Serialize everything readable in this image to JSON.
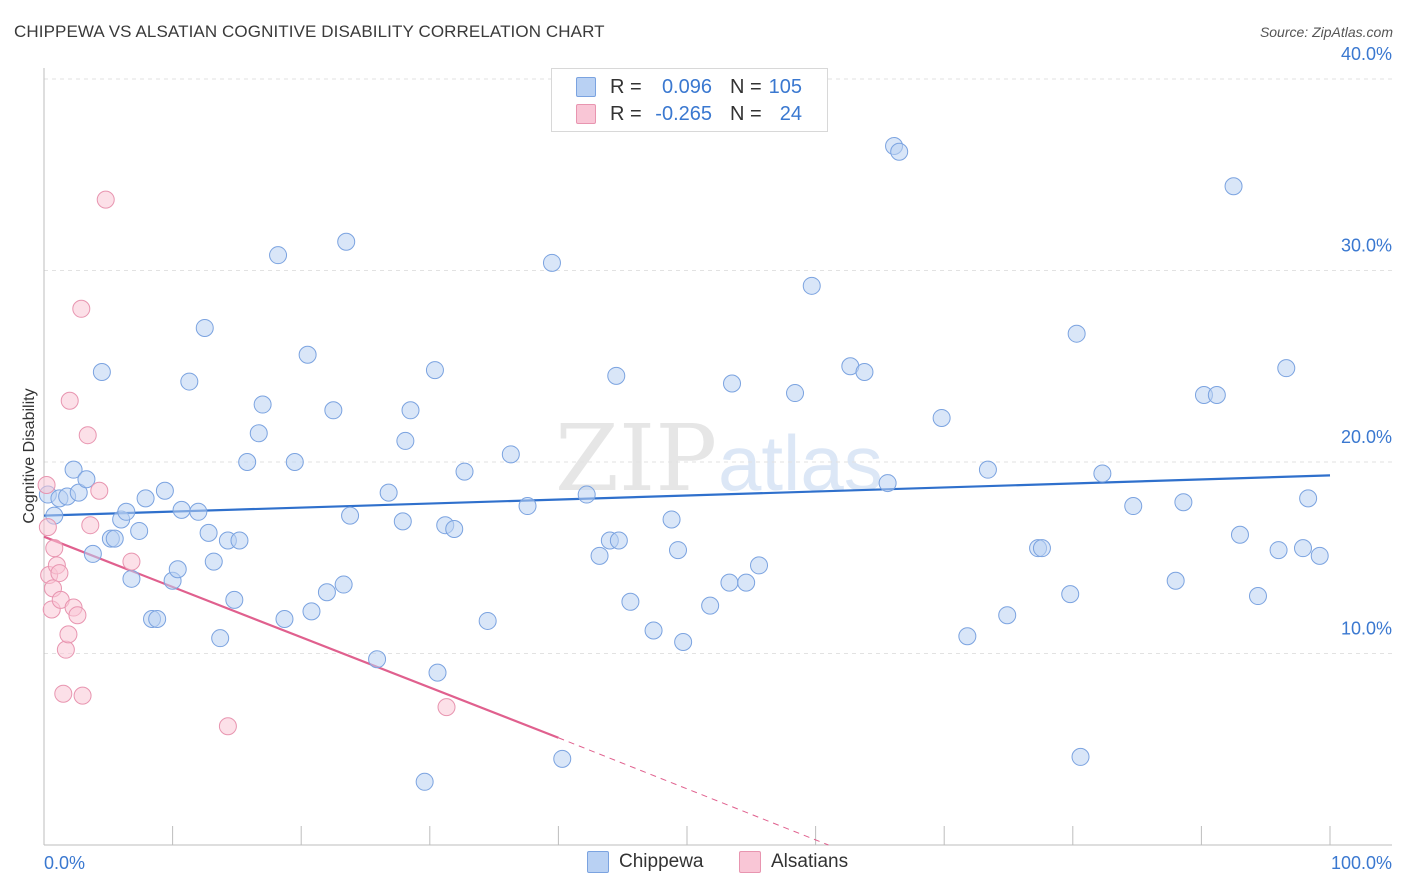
{
  "title": "CHIPPEWA VS ALSATIAN COGNITIVE DISABILITY CORRELATION CHART",
  "source": "Source: ZipAtlas.com",
  "watermark": {
    "zip": "ZIP",
    "atlas": "atlas"
  },
  "legend": {
    "r_label": "R =",
    "n_label": "N =",
    "rows": [
      {
        "r": "0.096",
        "n": "105",
        "fill": "#b9d1f3",
        "stroke": "#7ba3e0"
      },
      {
        "r": "-0.265",
        "n": "24",
        "fill": "#f9c6d6",
        "stroke": "#e895b0"
      }
    ]
  },
  "chart_data": {
    "type": "scatter",
    "title": "CHIPPEWA VS ALSATIAN COGNITIVE DISABILITY CORRELATION CHART",
    "xlabel": "",
    "ylabel": "Cognitive Disability",
    "xlim": [
      0,
      100
    ],
    "ylim": [
      0,
      40
    ],
    "x_tick_labels": [
      "0.0%",
      "100.0%"
    ],
    "y_ticks": [
      10,
      20,
      30,
      40
    ],
    "y_tick_labels": [
      "10.0%",
      "20.0%",
      "30.0%",
      "40.0%"
    ],
    "grid": true,
    "series": [
      {
        "name": "Chippewa",
        "color": "#7ba3e0",
        "fill": "#b9d1f3",
        "trend": {
          "x0": 0,
          "y0": 17.2,
          "x1": 100,
          "y1": 19.3,
          "color": "#2f70cc"
        },
        "points": [
          [
            0.3,
            18.3
          ],
          [
            0.8,
            17.2
          ],
          [
            1.2,
            18.1
          ],
          [
            1.8,
            18.2
          ],
          [
            2.3,
            19.6
          ],
          [
            2.7,
            18.4
          ],
          [
            3.3,
            19.1
          ],
          [
            3.8,
            15.2
          ],
          [
            4.5,
            24.7
          ],
          [
            5.2,
            16.0
          ],
          [
            5.5,
            16.0
          ],
          [
            6.0,
            17.0
          ],
          [
            6.4,
            17.4
          ],
          [
            6.8,
            13.9
          ],
          [
            7.4,
            16.4
          ],
          [
            7.9,
            18.1
          ],
          [
            8.4,
            11.8
          ],
          [
            8.8,
            11.8
          ],
          [
            9.4,
            18.5
          ],
          [
            10.0,
            13.8
          ],
          [
            10.4,
            14.4
          ],
          [
            10.7,
            17.5
          ],
          [
            11.3,
            24.2
          ],
          [
            12.0,
            17.4
          ],
          [
            12.5,
            27.0
          ],
          [
            12.8,
            16.3
          ],
          [
            13.2,
            14.8
          ],
          [
            13.7,
            10.8
          ],
          [
            14.3,
            15.9
          ],
          [
            14.8,
            12.8
          ],
          [
            15.2,
            15.9
          ],
          [
            15.8,
            20.0
          ],
          [
            16.7,
            21.5
          ],
          [
            17.0,
            23.0
          ],
          [
            18.2,
            30.8
          ],
          [
            18.7,
            11.8
          ],
          [
            19.5,
            20.0
          ],
          [
            20.5,
            25.6
          ],
          [
            20.8,
            12.2
          ],
          [
            22.0,
            13.2
          ],
          [
            22.5,
            22.7
          ],
          [
            23.3,
            13.6
          ],
          [
            23.5,
            31.5
          ],
          [
            23.8,
            17.2
          ],
          [
            25.9,
            9.7
          ],
          [
            26.8,
            18.4
          ],
          [
            27.9,
            16.9
          ],
          [
            28.1,
            21.1
          ],
          [
            28.5,
            22.7
          ],
          [
            30.4,
            24.8
          ],
          [
            30.6,
            9.0
          ],
          [
            31.2,
            16.7
          ],
          [
            31.9,
            16.5
          ],
          [
            32.7,
            19.5
          ],
          [
            34.5,
            11.7
          ],
          [
            36.3,
            20.4
          ],
          [
            37.6,
            17.7
          ],
          [
            39.5,
            30.4
          ],
          [
            40.3,
            4.5
          ],
          [
            42.2,
            18.3
          ],
          [
            43.2,
            15.1
          ],
          [
            44.0,
            15.9
          ],
          [
            44.5,
            24.5
          ],
          [
            44.7,
            15.9
          ],
          [
            45.6,
            12.7
          ],
          [
            47.4,
            11.2
          ],
          [
            48.8,
            17.0
          ],
          [
            49.3,
            15.4
          ],
          [
            49.7,
            10.6
          ],
          [
            51.8,
            12.5
          ],
          [
            53.3,
            13.7
          ],
          [
            53.5,
            24.1
          ],
          [
            54.6,
            13.7
          ],
          [
            55.6,
            14.6
          ],
          [
            58.4,
            23.6
          ],
          [
            59.7,
            29.2
          ],
          [
            62.7,
            25.0
          ],
          [
            63.8,
            24.7
          ],
          [
            65.6,
            18.9
          ],
          [
            66.1,
            36.5
          ],
          [
            66.5,
            36.2
          ],
          [
            69.8,
            22.3
          ],
          [
            71.8,
            10.9
          ],
          [
            73.4,
            19.6
          ],
          [
            74.9,
            12.0
          ],
          [
            77.3,
            15.5
          ],
          [
            77.6,
            15.5
          ],
          [
            79.8,
            13.1
          ],
          [
            80.3,
            26.7
          ],
          [
            80.6,
            4.6
          ],
          [
            82.3,
            19.4
          ],
          [
            84.7,
            17.7
          ],
          [
            88.0,
            13.8
          ],
          [
            88.6,
            17.9
          ],
          [
            90.2,
            23.5
          ],
          [
            91.2,
            23.5
          ],
          [
            92.5,
            34.4
          ],
          [
            93.0,
            16.2
          ],
          [
            94.4,
            13.0
          ],
          [
            96.0,
            15.4
          ],
          [
            96.6,
            24.9
          ],
          [
            97.9,
            15.5
          ],
          [
            98.3,
            18.1
          ],
          [
            99.2,
            15.1
          ],
          [
            29.6,
            3.3
          ]
        ]
      },
      {
        "name": "Alsatians",
        "color": "#e895b0",
        "fill": "#f9c6d6",
        "trend": {
          "x0": 0,
          "y0": 16.1,
          "x1": 40,
          "y1": 5.6,
          "x_dash_end": 61,
          "y_dash_end": 0,
          "color": "#e0608e"
        },
        "points": [
          [
            0.2,
            18.8
          ],
          [
            0.3,
            16.6
          ],
          [
            0.4,
            14.1
          ],
          [
            0.6,
            12.3
          ],
          [
            0.7,
            13.4
          ],
          [
            0.8,
            15.5
          ],
          [
            1.0,
            14.6
          ],
          [
            1.2,
            14.2
          ],
          [
            1.3,
            12.8
          ],
          [
            1.5,
            7.9
          ],
          [
            1.7,
            10.2
          ],
          [
            1.9,
            11.0
          ],
          [
            2.0,
            23.2
          ],
          [
            2.3,
            12.4
          ],
          [
            2.6,
            12.0
          ],
          [
            2.9,
            28.0
          ],
          [
            3.0,
            7.8
          ],
          [
            3.4,
            21.4
          ],
          [
            3.6,
            16.7
          ],
          [
            4.3,
            18.5
          ],
          [
            4.8,
            33.7
          ],
          [
            6.8,
            14.8
          ],
          [
            14.3,
            6.2
          ],
          [
            31.3,
            7.2
          ]
        ]
      }
    ]
  },
  "bottom_legend": [
    {
      "label": "Chippewa",
      "fill": "#b9d1f3",
      "stroke": "#7ba3e0"
    },
    {
      "label": "Alsatians",
      "fill": "#f9c6d6",
      "stroke": "#e895b0"
    }
  ]
}
